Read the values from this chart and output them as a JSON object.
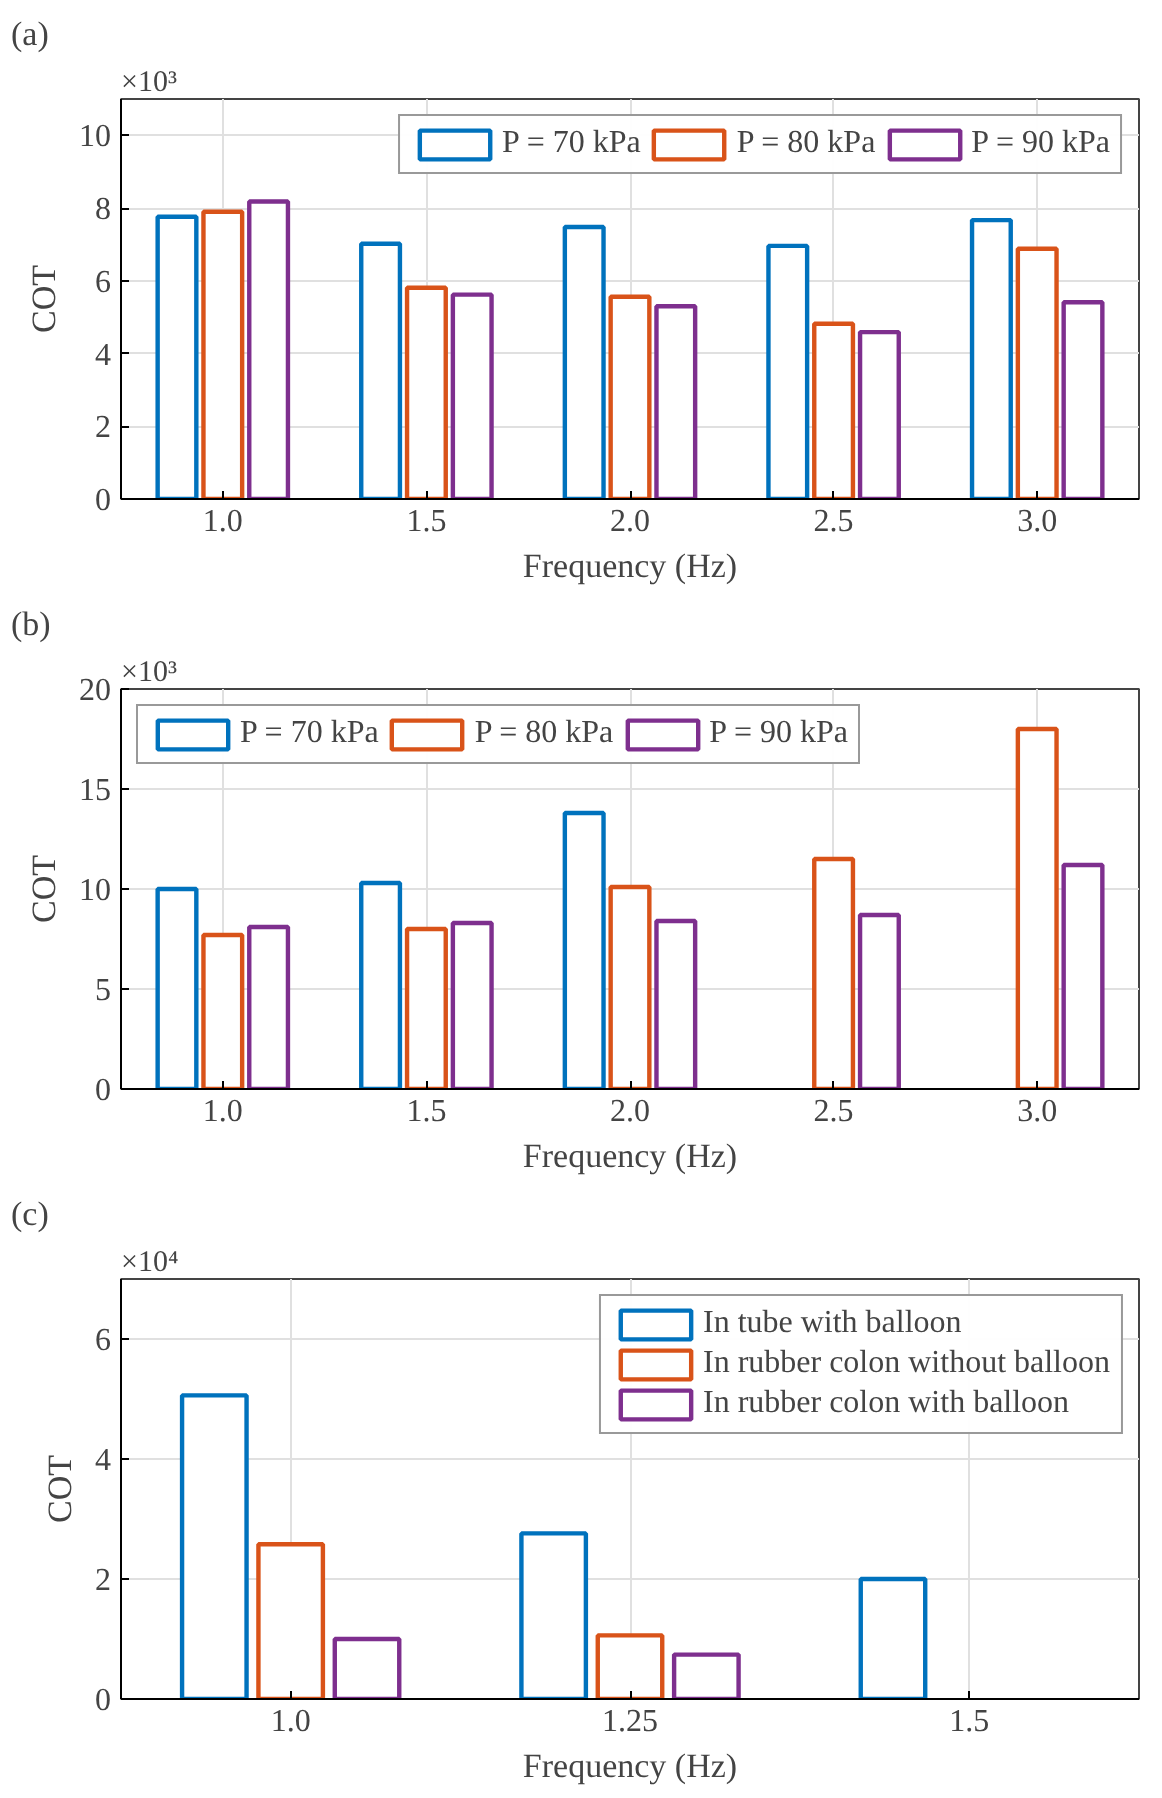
{
  "chart_data": [
    {
      "type": "bar",
      "title": "(a)",
      "xlabel": "Frequency (Hz)",
      "ylabel": "COT",
      "annotations": [
        "×10³"
      ],
      "categories": [
        "1.0",
        "1.5",
        "2.0",
        "2.5",
        "3.0"
      ],
      "series": [
        {
          "name": "P = 70 kPa",
          "color": "#0072bd",
          "values": [
            7.76,
            7.02,
            7.48,
            6.96,
            7.67
          ]
        },
        {
          "name": "P = 80 kPa",
          "color": "#d95319",
          "values": [
            7.9,
            5.81,
            5.56,
            4.82,
            6.88
          ]
        },
        {
          "name": "P = 90 kPa",
          "color": "#7e2f8e",
          "values": [
            8.18,
            5.62,
            5.3,
            4.59,
            5.41
          ]
        }
      ],
      "ylim": [
        0,
        11
      ],
      "yticks": [
        0,
        2,
        4,
        6,
        8,
        10
      ],
      "grid": true,
      "legend": "top right"
    },
    {
      "type": "bar",
      "title": "(b)",
      "xlabel": "Frequency (Hz)",
      "ylabel": "COT",
      "annotations": [
        "×10³"
      ],
      "categories": [
        "1.0",
        "1.5",
        "2.0",
        "2.5",
        "3.0"
      ],
      "series": [
        {
          "name": "P = 70 kPa",
          "color": "#0072bd",
          "values": [
            10.0,
            10.3,
            13.8,
            null,
            null
          ]
        },
        {
          "name": "P = 80 kPa",
          "color": "#d95319",
          "values": [
            7.7,
            8.0,
            10.1,
            11.5,
            18.0
          ]
        },
        {
          "name": "P = 90 kPa",
          "color": "#7e2f8e",
          "values": [
            8.1,
            8.3,
            8.4,
            8.7,
            11.2
          ]
        }
      ],
      "ylim": [
        0,
        20
      ],
      "yticks": [
        0,
        5,
        10,
        15,
        20
      ],
      "grid": true,
      "legend": "top left"
    },
    {
      "type": "bar",
      "title": "(c)",
      "xlabel": "Frequency (Hz)",
      "ylabel": "COT",
      "annotations": [
        "×10⁴"
      ],
      "categories": [
        "1.0",
        "1.25",
        "1.5"
      ],
      "series": [
        {
          "name": "In tube with balloon",
          "color": "#0072bd",
          "values": [
            5.06,
            2.76,
            2.0
          ]
        },
        {
          "name": "In rubber colon without balloon",
          "color": "#d95319",
          "values": [
            2.58,
            1.06,
            null
          ]
        },
        {
          "name": "In rubber colon with balloon",
          "color": "#7e2f8e",
          "values": [
            1.0,
            0.74,
            null
          ]
        }
      ],
      "ylim": [
        0,
        7
      ],
      "yticks": [
        0,
        2,
        4,
        6
      ],
      "grid": true,
      "legend": "top right"
    }
  ]
}
